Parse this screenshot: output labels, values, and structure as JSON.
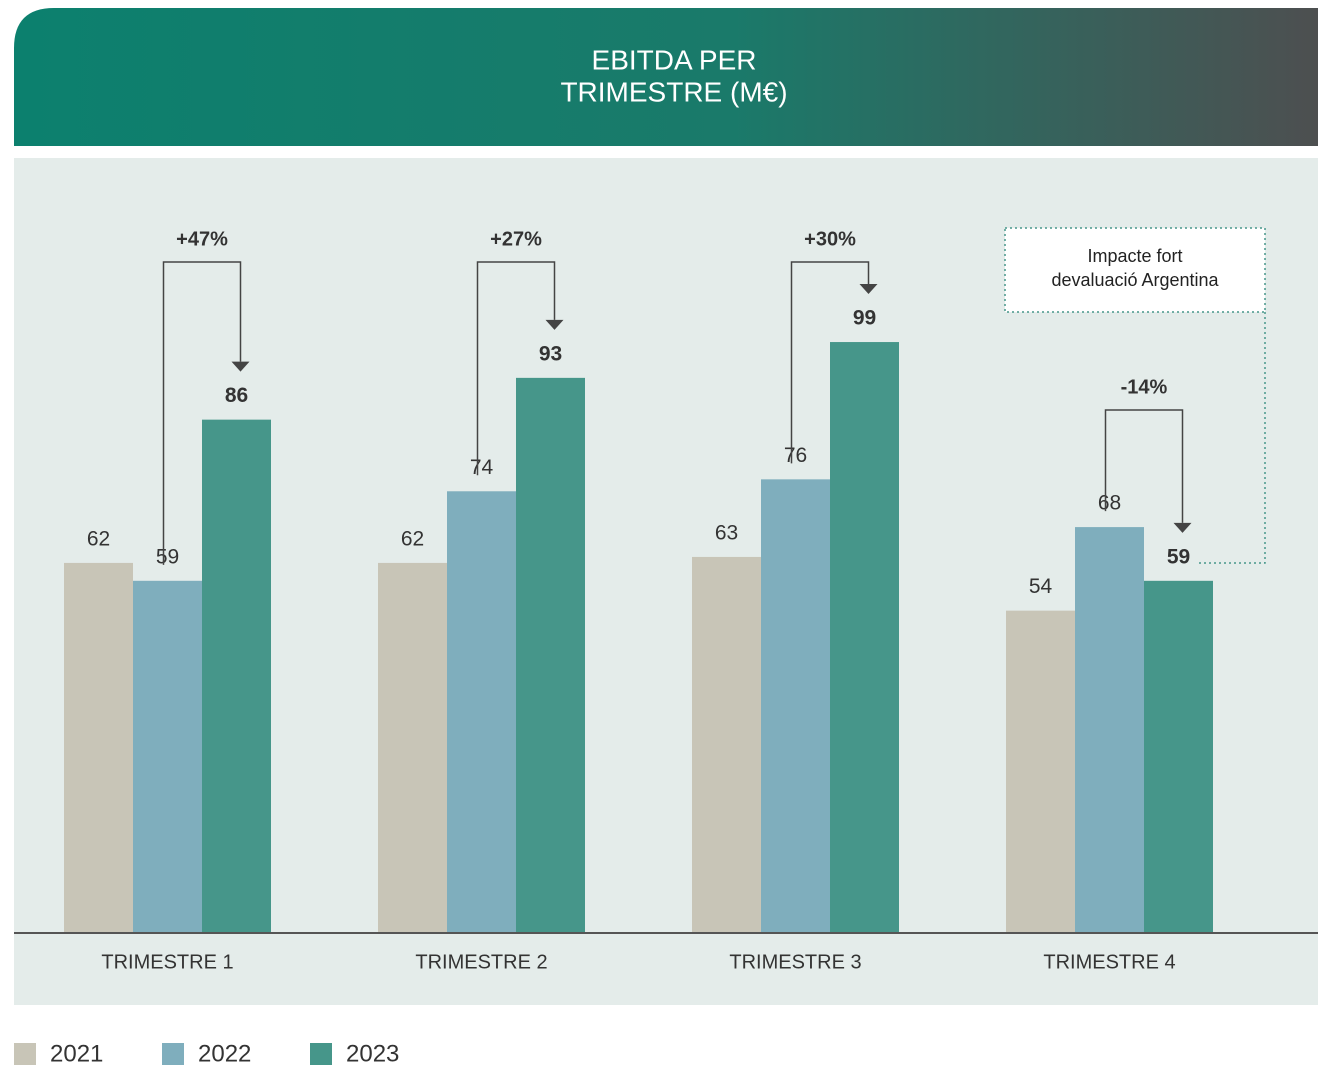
{
  "chart_data": {
    "type": "bar",
    "title": [
      "EBITDA PER",
      "TRIMESTRE (M€)"
    ],
    "categories": [
      "TRIMESTRE 1",
      "TRIMESTRE 2",
      "TRIMESTRE 3",
      "TRIMESTRE 4"
    ],
    "series": [
      {
        "name": "2021",
        "color": "#c8c5b7",
        "values": [
          62,
          62,
          63,
          54
        ]
      },
      {
        "name": "2022",
        "color": "#7faebd",
        "values": [
          59,
          74,
          76,
          68
        ]
      },
      {
        "name": "2023",
        "color": "#46968a",
        "values": [
          86,
          93,
          99,
          59
        ]
      }
    ],
    "change_labels": [
      "+47%",
      "+27%",
      "+30%",
      "-14%"
    ],
    "note": [
      "Impacte fort",
      "devaluació Argentina"
    ],
    "ylim": [
      0,
      130
    ]
  }
}
